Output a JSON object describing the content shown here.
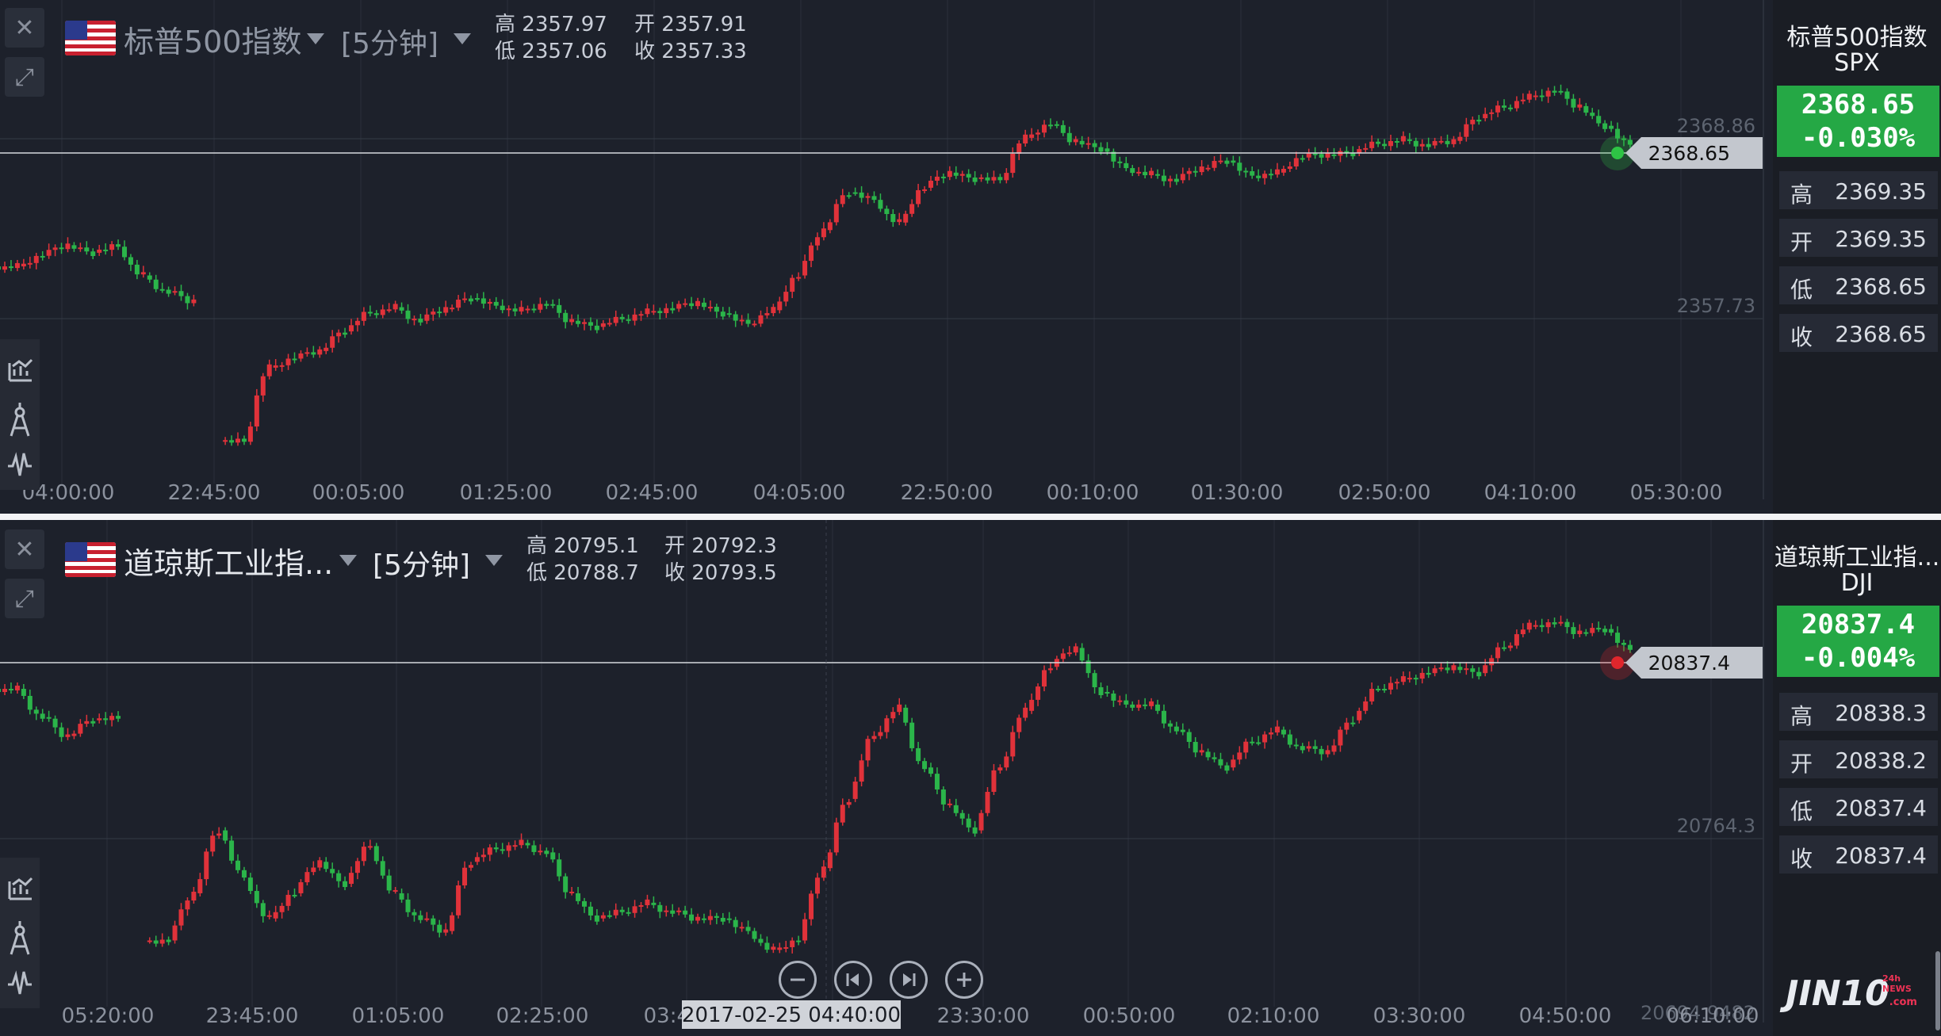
{
  "panels": [
    {
      "id": "spx",
      "name": "标普500指数",
      "timeframe": "[5分钟]",
      "ohlc": {
        "high_label": "高",
        "high": "2357.97",
        "open_label": "开",
        "open": "2357.91",
        "low_label": "低",
        "low": "2357.06",
        "close_label": "收",
        "close": "2357.33"
      },
      "side": {
        "name": "标普500指数",
        "code": "SPX",
        "price": "2368.65",
        "change": "-0.030%",
        "rows": [
          {
            "label": "高",
            "value": "2369.35"
          },
          {
            "label": "开",
            "value": "2369.35"
          },
          {
            "label": "低",
            "value": "2368.65"
          },
          {
            "label": "收",
            "value": "2368.65"
          }
        ]
      },
      "last_price_label": "2368.65",
      "grid_labels": [
        "2368.86",
        "2357.73"
      ],
      "x_labels": [
        "04:00:00",
        "22:45:00",
        "00:05:00",
        "01:25:00",
        "02:45:00",
        "04:05:00",
        "22:50:00",
        "00:10:00",
        "01:30:00",
        "02:50:00",
        "04:10:00",
        "05:30:00"
      ],
      "accent": "#2ec445"
    },
    {
      "id": "dji",
      "name": "道琼斯工业指...",
      "timeframe": "[5分钟]",
      "ohlc": {
        "high_label": "高",
        "high": "20795.1",
        "open_label": "开",
        "open": "20792.3",
        "low_label": "低",
        "low": "20788.7",
        "close_label": "收",
        "close": "20793.5"
      },
      "side": {
        "name": "道琼斯工业指...",
        "code": "DJI",
        "price": "20837.4",
        "change": "-0.004%",
        "rows": [
          {
            "label": "高",
            "value": "20838.3"
          },
          {
            "label": "开",
            "value": "20838.2"
          },
          {
            "label": "低",
            "value": "20837.4"
          },
          {
            "label": "收",
            "value": "20837.4"
          }
        ]
      },
      "last_price_label": "20837.4",
      "grid_labels": [
        "20764.3",
        "20694.9482"
      ],
      "x_labels": [
        "05:20:00",
        "23:45:00",
        "01:05:00",
        "02:25:00",
        "03:45:00",
        "23:30:00",
        "00:50:00",
        "02:10:00",
        "03:30:00",
        "04:50:00",
        "06:10:00"
      ],
      "crosshair_label": "2017-02-25 04:40:00",
      "accent": "#e0262c"
    }
  ],
  "chart_data": [
    {
      "type": "candlestick",
      "title": "标普500指数",
      "x_ticks": [
        "04:00:00",
        "22:45:00",
        "00:05:00",
        "01:25:00",
        "02:45:00",
        "04:05:00",
        "22:50:00",
        "00:10:00",
        "01:30:00",
        "02:50:00",
        "04:10:00",
        "05:30:00"
      ],
      "y_reference_levels": [
        2368.86,
        2357.73
      ],
      "last_price": 2368.65,
      "close_path": [
        2360.6,
        2361.3,
        2362.0,
        2361.5,
        2361.9,
        2360.0,
        2358.9,
        2358.3,
        0,
        2349.0,
        2353.9,
        2354.5,
        2355.0,
        2356.3,
        2357.5,
        2357.9,
        2357.0,
        2357.8,
        2358.5,
        2358.0,
        2357.7,
        2358.1,
        2357.0,
        2356.6,
        2357.1,
        2357.6,
        2357.8,
        2358.2,
        2357.5,
        2356.8,
        2357.7,
        2360.0,
        2363.0,
        2365.5,
        2365.0,
        2363.5,
        2365.8,
        2366.8,
        2366.4,
        2366.3,
        2369.1,
        2370.0,
        2368.9,
        2368.4,
        2367.1,
        2366.7,
        2366.3,
        2367.1,
        2367.6,
        2366.6,
        2366.8,
        2367.8,
        2368.0,
        2368.1,
        2368.7,
        2369.0,
        2368.6,
        2368.9,
        2370.4,
        2371.1,
        2371.8,
        2372.2,
        2371.2,
        2369.9,
        2368.65
      ],
      "up_color": "#e0323a",
      "down_color": "#2bb54a"
    },
    {
      "type": "candlestick",
      "title": "道琼斯工业指...",
      "x_ticks": [
        "05:20:00",
        "23:45:00",
        "01:05:00",
        "02:25:00",
        "03:45:00",
        "23:30:00",
        "00:50:00",
        "02:10:00",
        "03:30:00",
        "04:50:00",
        "06:10:00"
      ],
      "y_reference_levels": [
        20764.3,
        20694.9482
      ],
      "last_price": 20837.4,
      "crosshair_time": "2017-02-25 04:40:00",
      "close_path": [
        20825.0,
        20816.0,
        20810.0,
        20815.0,
        20815.5,
        0,
        20745.0,
        20760.0,
        20780.0,
        20765.0,
        20752.0,
        20760.0,
        20770.0,
        20763.0,
        20775.0,
        20760.0,
        20752.0,
        20748.0,
        20770.0,
        20774.0,
        20776.0,
        20773.0,
        20760.0,
        20752.0,
        20754.0,
        20757.0,
        20754.0,
        20752.0,
        20752.0,
        20748.0,
        20742.0,
        20745.0,
        20768.0,
        20790.0,
        20810.0,
        20819.0,
        20800.0,
        20788.0,
        20780.0,
        20800.0,
        20818.0,
        20832.0,
        20838.0,
        20824.0,
        20820.0,
        20820.0,
        20812.0,
        20805.0,
        20800.0,
        20808.0,
        20812.0,
        20806.0,
        20805.0,
        20815.0,
        20825.0,
        20828.0,
        20830.0,
        20832.0,
        20830.0,
        20838.0,
        20845.0,
        20846.0,
        20843.0,
        20844.0,
        20837.4
      ],
      "up_color": "#e0323a",
      "down_color": "#2bb54a"
    }
  ],
  "icons": [
    "close-icon",
    "expand-icon",
    "indicator-icon",
    "drawing-icon",
    "wave-icon",
    "zoom-out-icon",
    "prev-icon",
    "next-icon",
    "zoom-in-icon"
  ],
  "logo": {
    "text": "JIN10",
    "sub": ".com",
    "badge": "24h NEWS"
  }
}
